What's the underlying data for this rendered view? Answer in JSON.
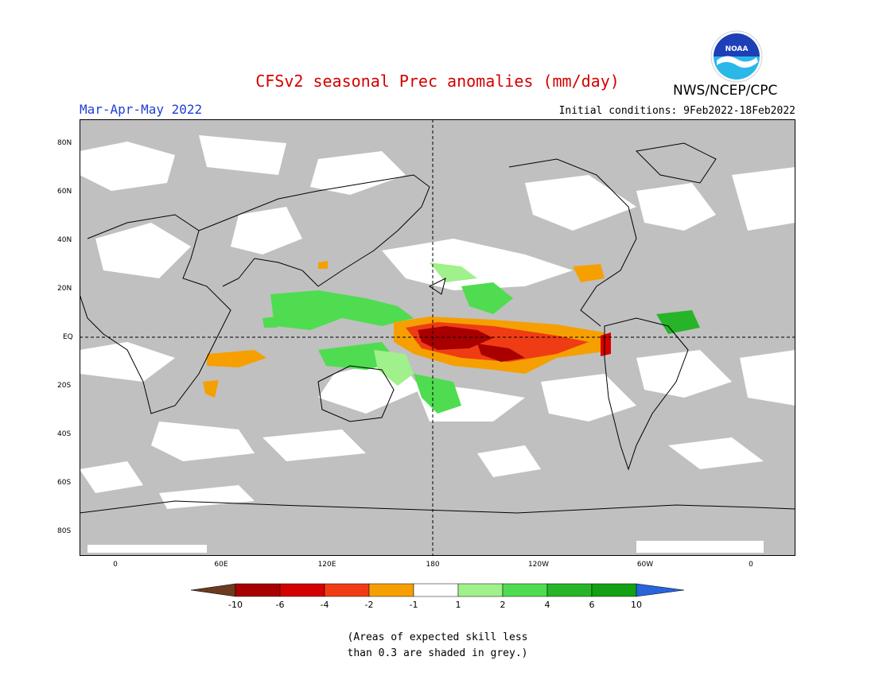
{
  "header": {
    "title": "CFSv2 seasonal Prec anomalies (mm/day)",
    "season": "Mar-Apr-May 2022",
    "initial_conditions": "Initial conditions: 9Feb2022-18Feb2022",
    "agency": "NWS/NCEP/CPC",
    "logo_text": "NOAA"
  },
  "map": {
    "lat_labels": [
      "80N",
      "60N",
      "40N",
      "20N",
      "EQ",
      "20S",
      "40S",
      "60S",
      "80S"
    ],
    "lon_labels": [
      "0",
      "60E",
      "120E",
      "180",
      "120W",
      "60W",
      "0"
    ],
    "colors": {
      "grey_mask": "#c0c0c0",
      "coast": "#000000"
    }
  },
  "colorbar": {
    "labels": [
      "-10",
      "-6",
      "-4",
      "-2",
      "-1",
      "1",
      "2",
      "4",
      "6",
      "10"
    ],
    "colors": [
      "#6b3a1f",
      "#a80000",
      "#d40000",
      "#f03c14",
      "#f5a000",
      "#ffffff",
      "#a0f08c",
      "#50dc50",
      "#28b428",
      "#14a014",
      "#2864dc"
    ]
  },
  "note": {
    "line1": "(Areas of expected skill less",
    "line2": "than 0.3 are shaded in grey.)"
  }
}
